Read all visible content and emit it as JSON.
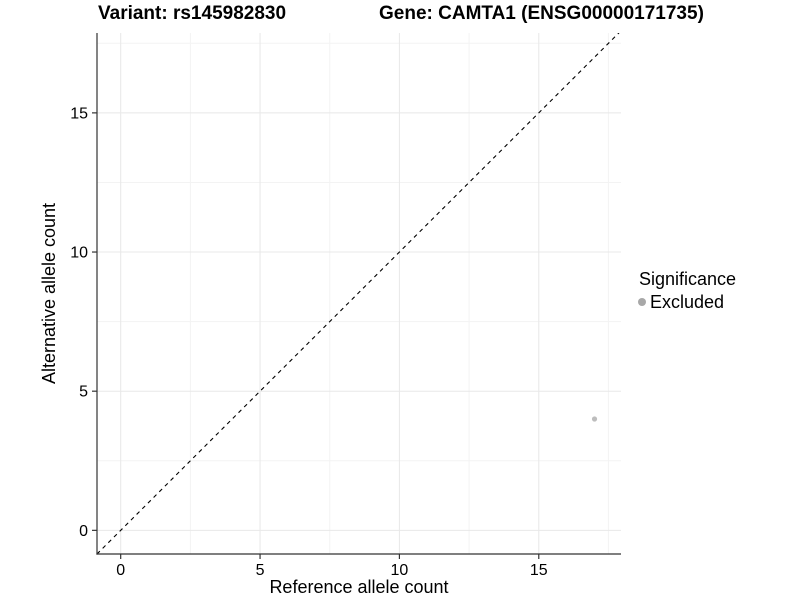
{
  "chart_data": {
    "type": "scatter",
    "title_left": "Variant: rs145982830",
    "title_right": "Gene: CAMTA1 (ENSG00000171735)",
    "xlabel": "Reference allele count",
    "ylabel": "Alternative allele count",
    "xlim": [
      -0.85,
      17.95
    ],
    "ylim": [
      -0.85,
      17.87
    ],
    "x_ticks": [
      0,
      5,
      10,
      15
    ],
    "y_ticks": [
      0,
      5,
      10,
      15
    ],
    "x_minor_ticks": [
      2.5,
      7.5,
      12.5,
      17.5
    ],
    "y_minor_ticks": [
      2.5,
      7.5,
      12.5,
      17.5
    ],
    "grid": "major+minor",
    "points": [
      {
        "x": 17,
        "y": 4,
        "series": "Excluded",
        "color": "#bdbdbd",
        "radius": 2.6
      }
    ],
    "reference_line": {
      "type": "identity",
      "equation": "y = x",
      "style": "dashed",
      "color": "#000000"
    },
    "legend": {
      "position": "right",
      "title": "Significance",
      "entries": [
        {
          "label": "Excluded",
          "color": "#a8a8a8"
        }
      ]
    },
    "colors": {
      "background": "#ffffff",
      "major_grid": "#e8e8e8",
      "minor_grid": "#f3f3f3",
      "axis_line": "#333333",
      "text": "#000000"
    }
  }
}
